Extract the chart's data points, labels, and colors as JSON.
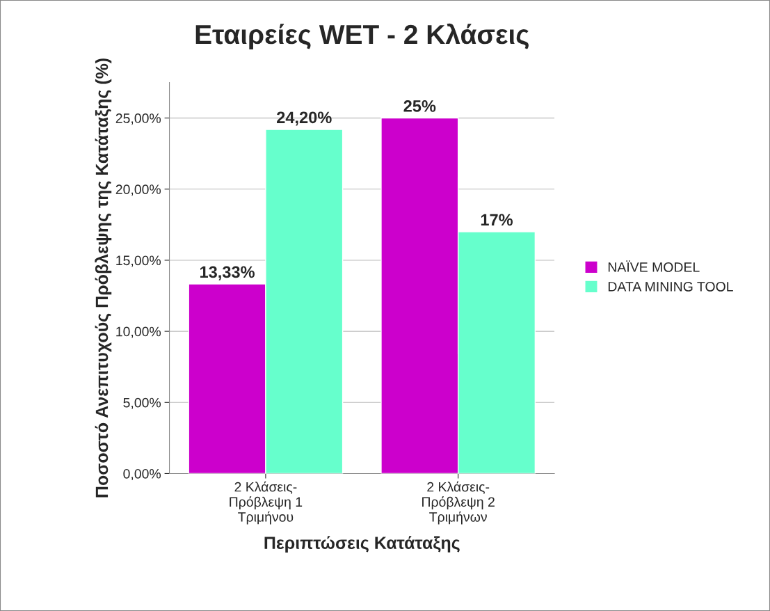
{
  "chart_data": {
    "type": "bar",
    "title": "Εταιρείες WET - 2 Κλάσεις",
    "xlabel": "Περιπτώσεις Κατάταξης",
    "ylabel": "Ποσοστό Ανεπιτυχούς Πρόβλεψης της Κατάταξης (%)",
    "categories": [
      "2 Κλάσεις-\nΠρόβλεψη 1\nΤριμήνου",
      "2 Κλάσεις-\nΠρόβλεψη 2\nΤριμήνων"
    ],
    "series": [
      {
        "name": "NAÏVE MODEL",
        "color": "#cc00cc",
        "values": [
          13.33,
          25
        ],
        "value_labels": [
          "13,33%",
          "25%"
        ]
      },
      {
        "name": "DATA MINING TOOL",
        "color": "#66ffcc",
        "values": [
          24.2,
          17
        ],
        "value_labels": [
          "24,20%",
          "17%"
        ]
      }
    ],
    "ylim": [
      0,
      27.5
    ],
    "yticks": [
      {
        "value": 0,
        "label": "0,00%"
      },
      {
        "value": 5,
        "label": "5,00%"
      },
      {
        "value": 10,
        "label": "10,00%"
      },
      {
        "value": 15,
        "label": "15,00%"
      },
      {
        "value": 20,
        "label": "20,00%"
      },
      {
        "value": 25,
        "label": "25,00%"
      }
    ],
    "grid": "y",
    "legend": "right"
  }
}
